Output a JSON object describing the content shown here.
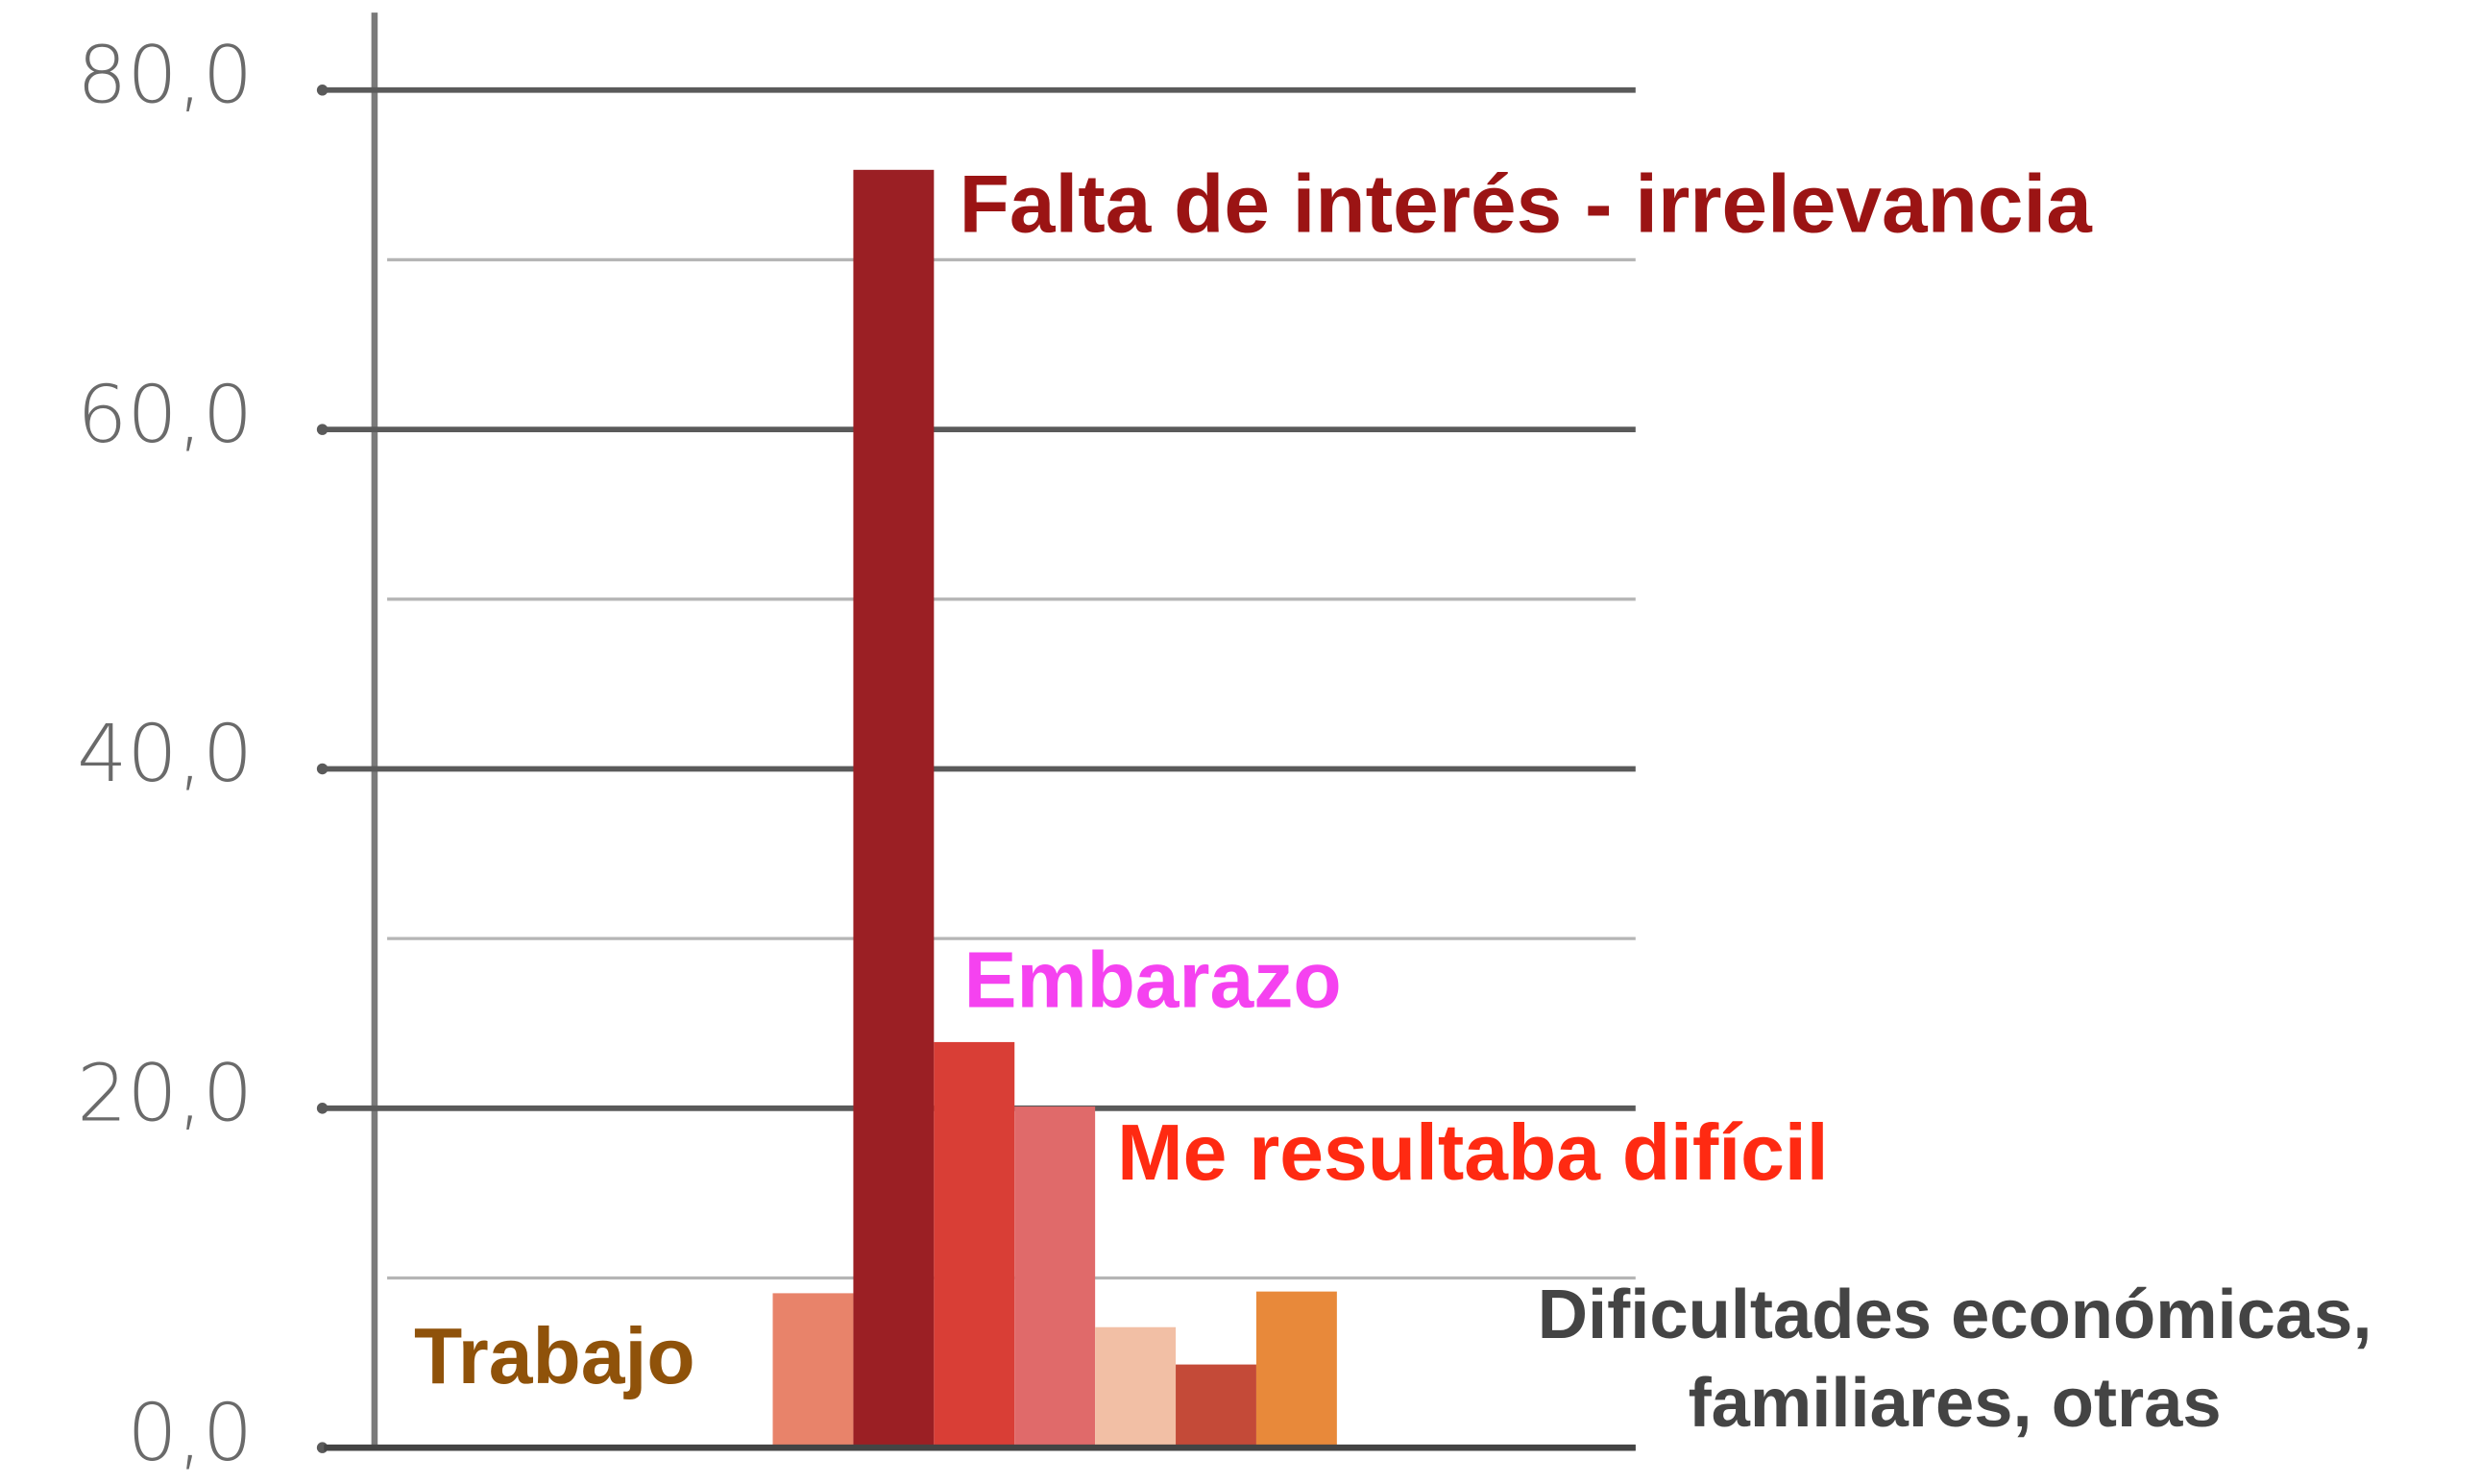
{
  "chart_data": {
    "type": "bar",
    "categories": [
      null,
      null,
      null,
      null,
      null,
      null,
      null
    ],
    "values": [
      9.1,
      75.3,
      23.9,
      20.1,
      7.1,
      4.9,
      9.2
    ],
    "colors": [
      "#e8836a",
      "#9b1f24",
      "#d93e36",
      "#e06a6a",
      "#f2bfa5",
      "#c44a38",
      "#e8893a"
    ],
    "ylim": [
      0,
      80
    ],
    "yticks": [
      {
        "value": 0,
        "label": "0,0"
      },
      {
        "value": 20,
        "label": "20,0"
      },
      {
        "value": 40,
        "label": "40,0"
      },
      {
        "value": 60,
        "label": "60,0"
      },
      {
        "value": 80,
        "label": "80,0"
      }
    ],
    "minor_yticks": [
      10,
      30,
      50,
      70
    ],
    "grid": true,
    "annotations": [
      {
        "text": "Falta de interés - irrelevancia",
        "color": "#9b1414"
      },
      {
        "text": "Embarazo",
        "color": "#f542f0"
      },
      {
        "text": "Me resultaba difícil",
        "color": "#ff2a12"
      },
      {
        "text": "Trabajo",
        "color": "#8f520a"
      },
      {
        "lines": [
          "Dificultades económicas,",
          "familiares, otras"
        ],
        "color": "#444444"
      }
    ]
  }
}
